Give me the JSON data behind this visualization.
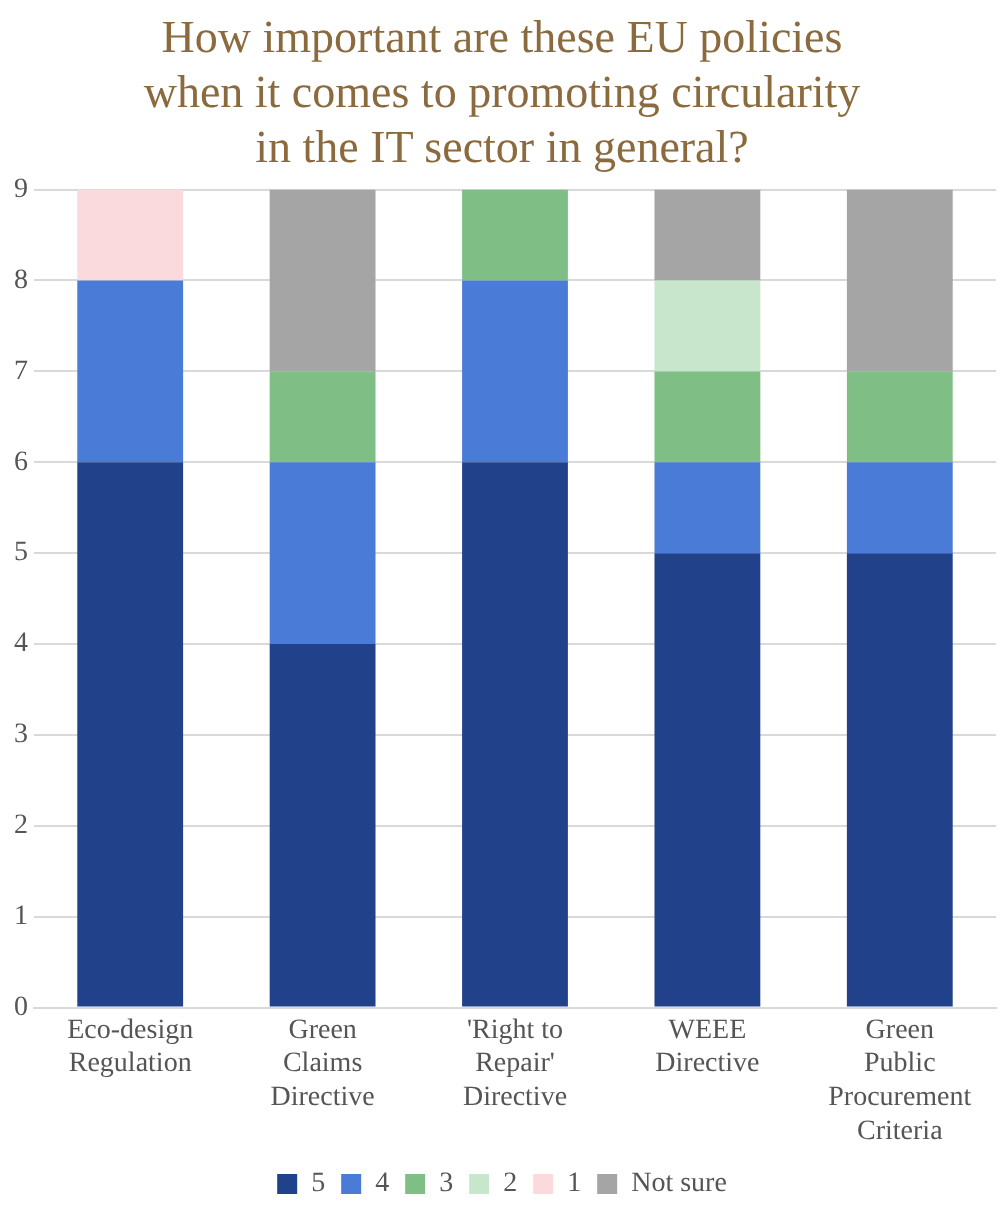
{
  "chart_data": {
    "type": "bar",
    "title": "How important are these EU policies when it comes to promoting circularity in the IT sector in general?",
    "categories": [
      "Eco-design Regulation",
      "Green Claims Directive",
      "'Right to Repair' Directive",
      "WEEE Directive",
      "Green Public Procurement Criteria"
    ],
    "series": [
      {
        "name": "5",
        "color": "#21428a",
        "values": [
          6,
          4,
          6,
          5,
          5
        ]
      },
      {
        "name": "4",
        "color": "#4a7bd6",
        "values": [
          2,
          2,
          2,
          1,
          1
        ]
      },
      {
        "name": "3",
        "color": "#7fbf86",
        "values": [
          0,
          1,
          1,
          1,
          1
        ]
      },
      {
        "name": "2",
        "color": "#c8e6cc",
        "values": [
          0,
          0,
          0,
          1,
          0
        ]
      },
      {
        "name": "1",
        "color": "#fadadd",
        "values": [
          1,
          0,
          0,
          0,
          0
        ]
      },
      {
        "name": "Not sure",
        "color": "#a5a5a5",
        "values": [
          0,
          2,
          0,
          1,
          2
        ]
      }
    ],
    "stacked": true,
    "ylim": [
      0,
      9
    ],
    "yticks": [
      0,
      1,
      2,
      3,
      4,
      5,
      6,
      7,
      8,
      9
    ],
    "grid": "y",
    "legend": "bottom"
  }
}
